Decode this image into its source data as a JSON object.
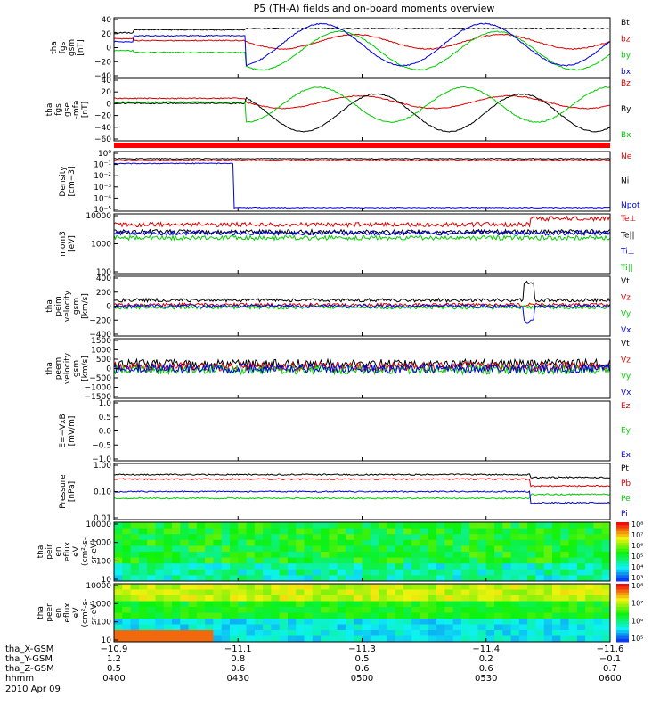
{
  "title": "P5 (TH-A) fields and on-board moments overview",
  "chart_data": [
    {
      "id": "fgs_gsm",
      "type": "line",
      "ylabel": [
        "tha",
        "fgs",
        "gsm",
        "[nT]"
      ],
      "yticks": [
        "40",
        "20",
        "0",
        "−20",
        "−40"
      ],
      "ylim": [
        -40,
        40
      ],
      "series": [
        {
          "name": "Bt",
          "color": "#000000"
        },
        {
          "name": "bz",
          "color": "#dd0000"
        },
        {
          "name": "by",
          "color": "#00cc00"
        },
        {
          "name": "bx",
          "color": "#0000dd"
        }
      ]
    },
    {
      "id": "fgs_gse_mfa",
      "type": "line",
      "ylabel": [
        "tha",
        "fgs",
        "gse",
        "-mfa",
        "[nT]"
      ],
      "yticks": [
        "40",
        "20",
        "0",
        "−20",
        "−40",
        "−60"
      ],
      "ylim": [
        -70,
        40
      ],
      "series": [
        {
          "name": "Bz",
          "color": "#dd0000"
        },
        {
          "name": "By",
          "color": "#000000"
        },
        {
          "name": "Bx",
          "color": "#00cc00"
        }
      ]
    },
    {
      "id": "density",
      "type": "line",
      "log": true,
      "ylabel": [
        "Density",
        "[cm−3]"
      ],
      "yticks": [
        "10⁰",
        "10⁻¹",
        "10⁻²",
        "10⁻³",
        "10⁻⁴",
        "10⁻⁵"
      ],
      "series": [
        {
          "name": "Ne",
          "color": "#dd0000"
        },
        {
          "name": "Ni",
          "color": "#000000"
        },
        {
          "name": "Npot",
          "color": "#0000dd"
        }
      ]
    },
    {
      "id": "temperature",
      "type": "line",
      "log": true,
      "ylabel": [
        "mom3",
        "[eV]"
      ],
      "yticks": [
        "10000",
        "1000",
        "100"
      ],
      "series": [
        {
          "name": "Te⊥",
          "color": "#dd0000"
        },
        {
          "name": "Te||",
          "color": "#000000"
        },
        {
          "name": "Ti⊥",
          "color": "#0000dd"
        },
        {
          "name": "Ti||",
          "color": "#00cc00"
        }
      ]
    },
    {
      "id": "peim_velocity",
      "type": "line",
      "ylabel": [
        "tha",
        "peim",
        "velocity",
        "gsm",
        "[km/s]"
      ],
      "yticks": [
        "400",
        "200",
        "0",
        "−200",
        "−400"
      ],
      "ylim": [
        -400,
        400
      ],
      "series": [
        {
          "name": "Vt",
          "color": "#000000"
        },
        {
          "name": "Vz",
          "color": "#dd0000"
        },
        {
          "name": "Vy",
          "color": "#00cc00"
        },
        {
          "name": "Vx",
          "color": "#0000dd"
        }
      ]
    },
    {
      "id": "peem_velocity",
      "type": "line",
      "ylabel": [
        "tha",
        "peem",
        "velocity",
        "gsm",
        "[km/s]"
      ],
      "yticks": [
        "1500",
        "1000",
        "500",
        "0",
        "−500",
        "−1000",
        "−1500"
      ],
      "ylim": [
        -1500,
        1500
      ],
      "series": [
        {
          "name": "Vt",
          "color": "#000000"
        },
        {
          "name": "Vz",
          "color": "#dd0000"
        },
        {
          "name": "Vy",
          "color": "#00cc00"
        },
        {
          "name": "Vx",
          "color": "#0000dd"
        }
      ]
    },
    {
      "id": "efield",
      "type": "line",
      "ylabel": [
        "E=−VxB",
        "[mV/m]"
      ],
      "yticks": [
        "1.0",
        "0.5",
        "0.0",
        "−0.5",
        "−1.0"
      ],
      "ylim": [
        -1,
        1
      ],
      "series": [
        {
          "name": "Ez",
          "color": "#dd0000"
        },
        {
          "name": "Ey",
          "color": "#00cc00"
        },
        {
          "name": "Ex",
          "color": "#0000dd"
        }
      ]
    },
    {
      "id": "pressure",
      "type": "line",
      "log": true,
      "ylabel": [
        "Pressure",
        "[nPa]"
      ],
      "yticks": [
        "1.00",
        "0.10",
        "0.01"
      ],
      "series": [
        {
          "name": "Pt",
          "color": "#000000"
        },
        {
          "name": "Pb",
          "color": "#dd0000"
        },
        {
          "name": "Pe",
          "color": "#00cc00"
        },
        {
          "name": "Pi",
          "color": "#0000dd"
        }
      ]
    },
    {
      "id": "peir_spec",
      "type": "heatmap",
      "ylabel": [
        "tha",
        "peir",
        "en",
        "eflux",
        "eV",
        "(cm²‑s‑",
        "sr‑eV)"
      ],
      "yticks": [
        "10000",
        "1000",
        "100",
        "10"
      ],
      "colorbar": [
        "10⁸",
        "10⁷",
        "10⁶",
        "10⁵",
        "10⁴",
        "10³"
      ]
    },
    {
      "id": "peer_spec",
      "type": "heatmap",
      "ylabel": [
        "tha",
        "peer",
        "en",
        "eflux",
        "eV",
        "(cm²‑s‑",
        "sr‑eV)"
      ],
      "yticks": [
        "10000",
        "1000",
        "100",
        "10"
      ],
      "colorbar": [
        "10⁸",
        "10⁷",
        "10⁶",
        "10⁵"
      ]
    }
  ],
  "xaxis": {
    "rows": [
      {
        "label": "tha_X-GSM",
        "values": [
          "−10.9",
          "−11.1",
          "−11.3",
          "−11.4",
          "−11.6"
        ]
      },
      {
        "label": "tha_Y-GSM",
        "values": [
          "1.2",
          "0.8",
          "0.5",
          "0.2",
          "−0.1"
        ]
      },
      {
        "label": "tha_Z-GSM",
        "values": [
          "0.5",
          "0.6",
          "0.6",
          "0.6",
          "0.7"
        ]
      },
      {
        "label": "hhmm",
        "values": [
          "0400",
          "0430",
          "0500",
          "0530",
          "0600"
        ]
      }
    ],
    "date": "2010 Apr 09"
  }
}
